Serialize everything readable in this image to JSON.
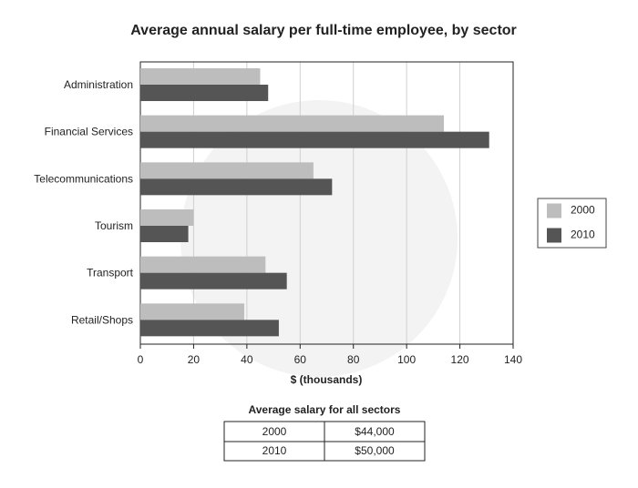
{
  "chart_data": {
    "type": "hbar",
    "title": "Average annual salary per full-time employee, by sector",
    "xlabel": "$ (thousands)",
    "categories": [
      "Administration",
      "Financial Services",
      "Telecommunications",
      "Tourism",
      "Transport",
      "Retail/Shops"
    ],
    "series": [
      {
        "name": "2000",
        "color": "#bdbdbd",
        "values": [
          45,
          114,
          65,
          20,
          47,
          39
        ]
      },
      {
        "name": "2010",
        "color": "#555555",
        "values": [
          48,
          131,
          72,
          18,
          55,
          52
        ]
      }
    ],
    "xlim": [
      0,
      140
    ],
    "xticks": [
      0,
      20,
      40,
      60,
      80,
      100,
      120,
      140
    ],
    "grid": true,
    "legend": "right"
  },
  "table": {
    "title": "Average salary for all sectors",
    "rows": [
      [
        "2000",
        "$44,000"
      ],
      [
        "2010",
        "$50,000"
      ]
    ]
  }
}
